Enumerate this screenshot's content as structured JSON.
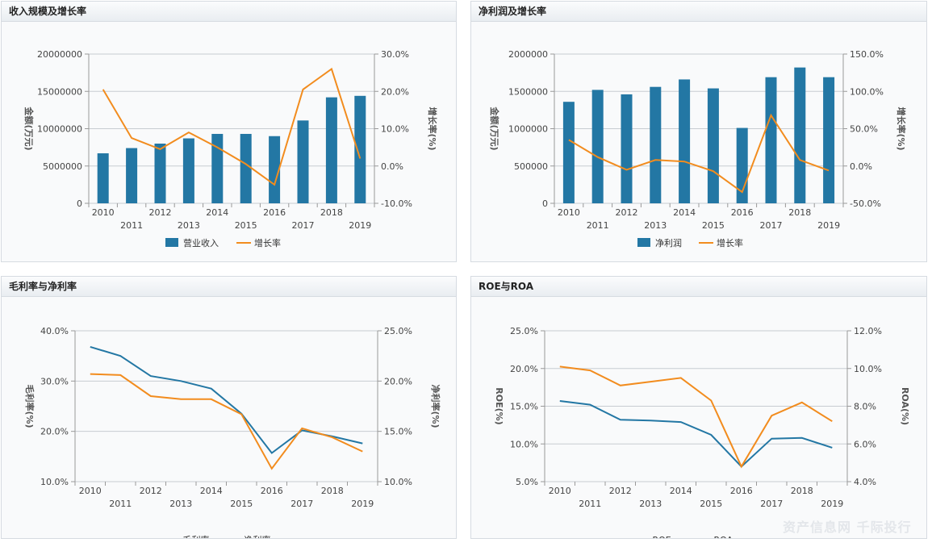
{
  "watermark": "资产信息网 千际投行",
  "colors": {
    "bar": "#2377a4",
    "line_orange": "#f28c1e",
    "line_blue": "#2377a4"
  },
  "chart_data": [
    {
      "type": "bar",
      "title": "收入规模及增长率",
      "categories": [
        "2010",
        "2011",
        "2012",
        "2013",
        "2014",
        "2015",
        "2016",
        "2017",
        "2018",
        "2019"
      ],
      "left_axis": {
        "label": "金额(万元)",
        "ticks": [
          "20000000",
          "15000000",
          "10000000",
          "5000000",
          "0"
        ],
        "min": 0,
        "max": 20000000
      },
      "right_axis": {
        "label": "增长率(%)",
        "ticks": [
          "30.0%",
          "20.0%",
          "10.0%",
          "0.0%",
          "-10.0%"
        ],
        "min": -10,
        "max": 30
      },
      "series": [
        {
          "name": "营业收入",
          "type": "bar",
          "axis": "left",
          "values": [
            6700000,
            7400000,
            8000000,
            8700000,
            9300000,
            9300000,
            9000000,
            11100000,
            14200000,
            14400000
          ]
        },
        {
          "name": "增长率",
          "type": "line",
          "axis": "right",
          "values": [
            20.5,
            7.5,
            4.5,
            9.0,
            5.0,
            0.5,
            -5.0,
            20.5,
            26.0,
            2.0
          ]
        }
      ],
      "legend": [
        "营业收入",
        "增长率"
      ]
    },
    {
      "type": "bar",
      "title": "净利润及增长率",
      "categories": [
        "2010",
        "2011",
        "2012",
        "2013",
        "2014",
        "2015",
        "2016",
        "2017",
        "2018",
        "2019"
      ],
      "left_axis": {
        "label": "金额(万元)",
        "ticks": [
          "2000000",
          "1500000",
          "1000000",
          "500000",
          "0"
        ],
        "min": 0,
        "max": 2000000
      },
      "right_axis": {
        "label": "增长率(%)",
        "ticks": [
          "150.0%",
          "100.0%",
          "50.0%",
          "0.0%",
          "-50.0%"
        ],
        "min": -50,
        "max": 150
      },
      "series": [
        {
          "name": "净利润",
          "type": "bar",
          "axis": "left",
          "values": [
            1360000,
            1520000,
            1460000,
            1560000,
            1660000,
            1540000,
            1010000,
            1690000,
            1820000,
            1690000
          ]
        },
        {
          "name": "增长率",
          "type": "line",
          "axis": "right",
          "values": [
            35,
            12,
            -5,
            8,
            6,
            -7,
            -35,
            68,
            8,
            -6
          ]
        }
      ],
      "legend": [
        "净利润",
        "增长率"
      ]
    },
    {
      "type": "line",
      "title": "毛利率与净利率",
      "categories": [
        "2010",
        "2011",
        "2012",
        "2013",
        "2014",
        "2015",
        "2016",
        "2017",
        "2018",
        "2019"
      ],
      "left_axis": {
        "label": "毛利率(%)",
        "ticks": [
          "40.0%",
          "30.0%",
          "20.0%",
          "10.0%"
        ],
        "min": 10,
        "max": 40
      },
      "right_axis": {
        "label": "净利率(%)",
        "ticks": [
          "25.0%",
          "20.0%",
          "15.0%",
          "10.0%"
        ],
        "min": 10,
        "max": 25
      },
      "series": [
        {
          "name": "毛利率",
          "axis": "left",
          "color": "blue",
          "values": [
            36.8,
            35.0,
            31.0,
            30.0,
            28.5,
            23.5,
            15.7,
            20.2,
            19.0,
            17.6
          ]
        },
        {
          "name": "净利率",
          "axis": "right",
          "color": "orange",
          "values": [
            20.7,
            20.6,
            18.5,
            18.2,
            18.2,
            16.7,
            11.3,
            15.3,
            14.4,
            13.0
          ]
        }
      ],
      "legend": [
        "毛利率",
        "净利率"
      ]
    },
    {
      "type": "line",
      "title": "ROE与ROA",
      "categories": [
        "2010",
        "2011",
        "2012",
        "2013",
        "2014",
        "2015",
        "2016",
        "2017",
        "2018",
        "2019"
      ],
      "left_axis": {
        "label": "ROE(%)",
        "ticks": [
          "25.0%",
          "20.0%",
          "15.0%",
          "10.0%",
          "5.0%"
        ],
        "min": 5,
        "max": 25
      },
      "right_axis": {
        "label": "ROA(%)",
        "ticks": [
          "12.0%",
          "10.0%",
          "8.0%",
          "6.0%",
          "4.0%"
        ],
        "min": 4,
        "max": 12
      },
      "series": [
        {
          "name": "ROE",
          "axis": "left",
          "color": "blue",
          "values": [
            15.7,
            15.2,
            13.2,
            13.1,
            12.9,
            11.2,
            7.0,
            10.7,
            10.8,
            9.5
          ]
        },
        {
          "name": "ROA",
          "axis": "right",
          "color": "orange",
          "values": [
            10.1,
            9.9,
            9.1,
            9.3,
            9.5,
            8.3,
            4.8,
            7.5,
            8.2,
            7.2
          ]
        }
      ],
      "legend": [
        "ROE",
        "ROA"
      ]
    }
  ]
}
